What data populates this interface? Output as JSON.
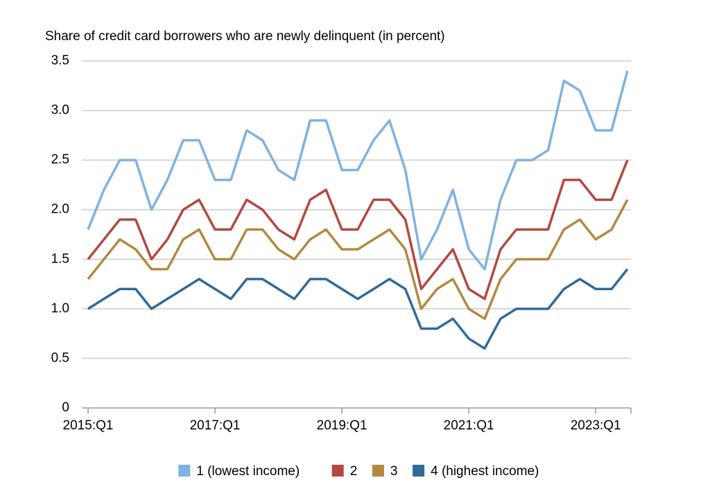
{
  "chart_data": {
    "type": "line",
    "title": "Share of credit card borrowers who are newly delinquent (in percent)",
    "categories": [
      "2015:Q1",
      null,
      null,
      null,
      null,
      null,
      null,
      null,
      "2017:Q1",
      null,
      null,
      null,
      null,
      null,
      null,
      null,
      "2019:Q1",
      null,
      null,
      null,
      null,
      null,
      null,
      null,
      "2021:Q1",
      null,
      null,
      null,
      null,
      null,
      null,
      null,
      "2023:Q1",
      null,
      null
    ],
    "series": [
      {
        "name": "1 (lowest income)",
        "color": "#7fb2e0",
        "values": [
          1.8,
          2.2,
          2.5,
          2.5,
          2.0,
          2.3,
          2.7,
          2.7,
          2.3,
          2.3,
          2.8,
          2.7,
          2.4,
          2.3,
          2.9,
          2.9,
          2.4,
          2.4,
          2.7,
          2.9,
          2.4,
          1.5,
          1.8,
          2.2,
          1.6,
          1.4,
          2.1,
          2.5,
          2.5,
          2.6,
          3.3,
          3.2,
          2.8,
          2.8,
          3.4
        ]
      },
      {
        "name": "2",
        "color": "#b5473f",
        "values": [
          1.5,
          1.7,
          1.9,
          1.9,
          1.5,
          1.7,
          2.0,
          2.1,
          1.8,
          1.8,
          2.1,
          2.0,
          1.8,
          1.7,
          2.1,
          2.2,
          1.8,
          1.8,
          2.1,
          2.1,
          1.9,
          1.2,
          1.4,
          1.6,
          1.2,
          1.1,
          1.6,
          1.8,
          1.8,
          1.8,
          2.3,
          2.3,
          2.1,
          2.1,
          2.5
        ]
      },
      {
        "name": "3",
        "color": "#b08a3e",
        "values": [
          1.3,
          1.5,
          1.7,
          1.6,
          1.4,
          1.4,
          1.7,
          1.8,
          1.5,
          1.5,
          1.8,
          1.8,
          1.6,
          1.5,
          1.7,
          1.8,
          1.6,
          1.6,
          1.7,
          1.8,
          1.6,
          1.0,
          1.2,
          1.3,
          1.0,
          0.9,
          1.3,
          1.5,
          1.5,
          1.5,
          1.8,
          1.9,
          1.7,
          1.8,
          2.1
        ]
      },
      {
        "name": "4 (highest income)",
        "color": "#2f6a9a",
        "values": [
          1.0,
          1.1,
          1.2,
          1.2,
          1.0,
          1.1,
          1.2,
          1.3,
          1.2,
          1.1,
          1.3,
          1.3,
          1.2,
          1.1,
          1.3,
          1.3,
          1.2,
          1.1,
          1.2,
          1.3,
          1.2,
          0.8,
          0.8,
          0.9,
          0.7,
          0.6,
          0.9,
          1.0,
          1.0,
          1.0,
          1.2,
          1.3,
          1.2,
          1.2,
          1.4
        ]
      }
    ],
    "ylim": [
      0,
      3.5
    ],
    "yticks": [
      0,
      0.5,
      {
        "value": 1.0,
        "label": "1.0"
      },
      1.5,
      {
        "value": 2.0,
        "label": "2.0"
      },
      2.5,
      {
        "value": 3.0,
        "label": "3.0"
      },
      3.5
    ],
    "grid": true
  }
}
